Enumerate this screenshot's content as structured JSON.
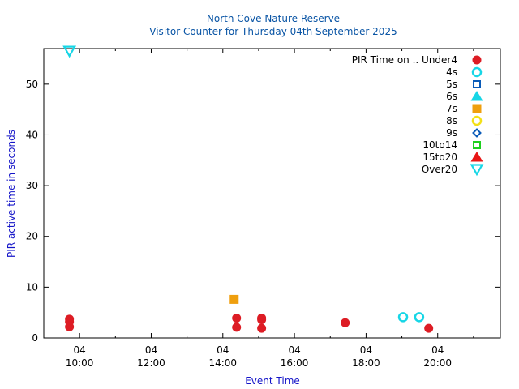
{
  "chart_data": {
    "type": "scatter",
    "title_lines": [
      "North Cove Nature Reserve",
      "Visitor Counter for Thursday 04th September 2025"
    ],
    "xlabel": "Event Time",
    "ylabel": "PIR active time in seconds",
    "xlim": [
      "09:00",
      "21:45"
    ],
    "ylim": [
      0,
      57
    ],
    "x_ticks": [
      {
        "day": "04",
        "time": "10:00"
      },
      {
        "day": "04",
        "time": "12:00"
      },
      {
        "day": "04",
        "time": "14:00"
      },
      {
        "day": "04",
        "time": "16:00"
      },
      {
        "day": "04",
        "time": "18:00"
      },
      {
        "day": "04",
        "time": "20:00"
      }
    ],
    "y_ticks": [
      0,
      10,
      20,
      30,
      40,
      50
    ],
    "legend_position": "top-right",
    "series": [
      {
        "name": "PIR Time on .. Under4",
        "marker": "circle",
        "color": "#dd1c24",
        "points": [
          [
            "09:43",
            2.2
          ],
          [
            "09:43",
            3.2
          ],
          [
            "09:43",
            3.7
          ],
          [
            "14:23",
            3.9
          ],
          [
            "14:23",
            2.1
          ],
          [
            "15:05",
            3.9
          ],
          [
            "15:05",
            3.6
          ],
          [
            "15:05",
            1.9
          ],
          [
            "17:25",
            3.0
          ],
          [
            "19:45",
            1.9
          ]
        ]
      },
      {
        "name": "4s",
        "marker": "circle-open",
        "color": "#17d6e6",
        "points": [
          [
            "19:02",
            4.1
          ],
          [
            "19:29",
            4.1
          ]
        ]
      },
      {
        "name": "5s",
        "marker": "square-open",
        "color": "#0a5bb8",
        "points": []
      },
      {
        "name": "6s",
        "marker": "triangle",
        "color": "#17d6e6",
        "points": []
      },
      {
        "name": "7s",
        "marker": "square",
        "color": "#ef9f0e",
        "points": [
          [
            "14:19",
            7.6
          ]
        ]
      },
      {
        "name": "8s",
        "marker": "circle-open",
        "color": "#f3e016",
        "points": []
      },
      {
        "name": "9s",
        "marker": "diamond-open",
        "color": "#0a5bb8",
        "points": []
      },
      {
        "name": "10to14",
        "marker": "square-open",
        "color": "#1ed01e",
        "points": []
      },
      {
        "name": "15to20",
        "marker": "triangle",
        "color": "#e81616",
        "points": []
      },
      {
        "name": "Over20",
        "marker": "triangle-down-open",
        "color": "#17d6e6",
        "points": [
          [
            "09:43",
            56.5
          ]
        ]
      }
    ]
  }
}
